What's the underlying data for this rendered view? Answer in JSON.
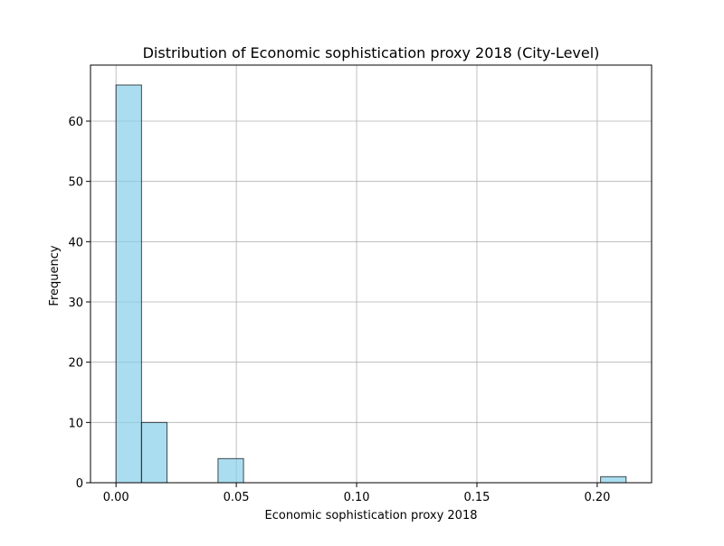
{
  "chart_data": {
    "type": "bar",
    "subtype": "histogram",
    "title": "Distribution of Economic sophistication proxy 2018 (City-Level)",
    "xlabel": "Economic sophistication proxy 2018",
    "ylabel": "Frequency",
    "xlim": [
      -0.0106,
      0.2226
    ],
    "ylim": [
      0,
      69.3
    ],
    "xticks": [
      {
        "value": 0.0,
        "label": "0.00"
      },
      {
        "value": 0.05,
        "label": "0.05"
      },
      {
        "value": 0.1,
        "label": "0.10"
      },
      {
        "value": 0.15,
        "label": "0.15"
      },
      {
        "value": 0.2,
        "label": "0.20"
      }
    ],
    "yticks": [
      {
        "value": 0,
        "label": "0"
      },
      {
        "value": 10,
        "label": "10"
      },
      {
        "value": 20,
        "label": "20"
      },
      {
        "value": 30,
        "label": "30"
      },
      {
        "value": 40,
        "label": "40"
      },
      {
        "value": 50,
        "label": "50"
      },
      {
        "value": 60,
        "label": "60"
      }
    ],
    "bins": [
      {
        "x0": 0.0,
        "x1": 0.0106,
        "count": 66
      },
      {
        "x0": 0.0106,
        "x1": 0.0212,
        "count": 10
      },
      {
        "x0": 0.0212,
        "x1": 0.0318,
        "count": 0
      },
      {
        "x0": 0.0318,
        "x1": 0.0424,
        "count": 0
      },
      {
        "x0": 0.0424,
        "x1": 0.053,
        "count": 4
      },
      {
        "x0": 0.053,
        "x1": 0.0636,
        "count": 0
      },
      {
        "x0": 0.0636,
        "x1": 0.0742,
        "count": 0
      },
      {
        "x0": 0.0742,
        "x1": 0.0848,
        "count": 0
      },
      {
        "x0": 0.0848,
        "x1": 0.0954,
        "count": 0
      },
      {
        "x0": 0.0954,
        "x1": 0.106,
        "count": 0
      },
      {
        "x0": 0.106,
        "x1": 0.1166,
        "count": 0
      },
      {
        "x0": 0.1166,
        "x1": 0.1272,
        "count": 0
      },
      {
        "x0": 0.1272,
        "x1": 0.1378,
        "count": 0
      },
      {
        "x0": 0.1378,
        "x1": 0.1484,
        "count": 0
      },
      {
        "x0": 0.1484,
        "x1": 0.159,
        "count": 0
      },
      {
        "x0": 0.159,
        "x1": 0.1696,
        "count": 0
      },
      {
        "x0": 0.1696,
        "x1": 0.1802,
        "count": 0
      },
      {
        "x0": 0.1802,
        "x1": 0.1908,
        "count": 0
      },
      {
        "x0": 0.1908,
        "x1": 0.2014,
        "count": 0
      },
      {
        "x0": 0.2014,
        "x1": 0.212,
        "count": 1
      }
    ],
    "grid": true,
    "colors": {
      "bar_fill": "#87ceeb",
      "bar_edge": "#000000",
      "grid": "#b0b0b0",
      "axes": "#000000"
    }
  }
}
